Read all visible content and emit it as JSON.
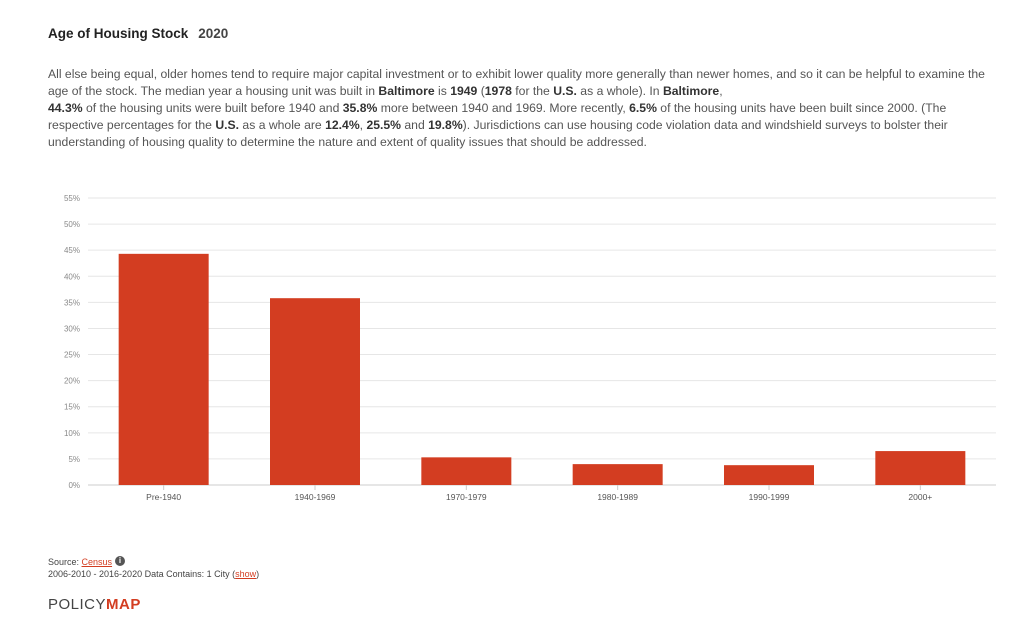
{
  "header": {
    "title": "Age of Housing Stock",
    "year": "2020"
  },
  "description": {
    "p1": "All else being equal, older homes tend to require major capital investment or to exhibit lower quality more generally than newer homes, and so it can be helpful to examine the age of the stock. The median year a housing unit was built in ",
    "place": "Baltimore",
    "p2": " is ",
    "median_year": "1949",
    "p3": " (",
    "us_median_year": "1978",
    "p4": " for the ",
    "us_label": "U.S.",
    "p5": " as a whole). In ",
    "p6": ",",
    "pct_pre1940": "44.3%",
    "p7": " of the housing units were built before 1940 and ",
    "pct_1940_1969": "35.8%",
    "p8": " more between 1940 and 1969. More recently, ",
    "pct_2000": "6.5%",
    "p9": " of the housing units have been built since 2000. (The respective percentages for the ",
    "p10": " as a whole are ",
    "us_pct_pre1940": "12.4%",
    "sep1": ", ",
    "us_pct_1940_1969": "25.5%",
    "and": " and ",
    "us_pct_2000": "19.8%",
    "p11": "). Jurisdictions can use housing code violation data and windshield surveys to bolster their understanding of housing quality to determine the nature and extent of quality issues that should be addressed."
  },
  "chart_data": {
    "type": "bar",
    "title": "",
    "xlabel": "",
    "ylabel": "",
    "categories": [
      "Pre-1940",
      "1940-1969",
      "1970-1979",
      "1980-1989",
      "1990-1999",
      "2000+"
    ],
    "values": [
      44.3,
      35.8,
      5.3,
      4.0,
      3.8,
      6.5
    ],
    "ylim": [
      0,
      55
    ],
    "yticks": [
      "0%",
      "5%",
      "10%",
      "15%",
      "20%",
      "25%",
      "30%",
      "35%",
      "40%",
      "45%",
      "50%",
      "55%"
    ],
    "bar_color": "#d33d21",
    "grid": true
  },
  "footer": {
    "source_label": "Source: ",
    "source_link": "Census",
    "info_icon": "i",
    "data_line": "2006-2010 - 2016-2020 Data Contains: 1 City (",
    "show_link": "show",
    "data_line_end": ")",
    "logo_policy": "POLICY",
    "logo_map": "MAP"
  }
}
